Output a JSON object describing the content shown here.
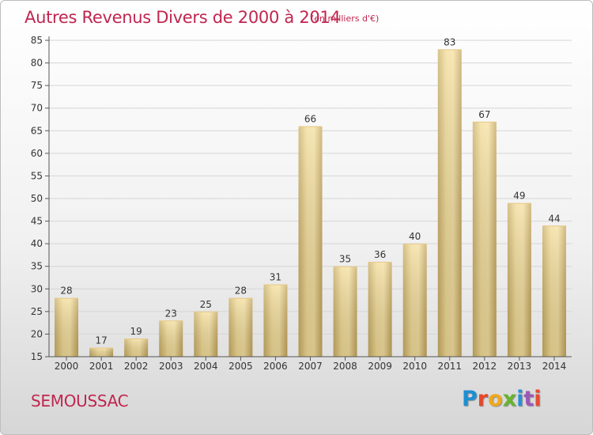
{
  "header": {
    "title": "Autres Revenus Divers de 2000 à 2014",
    "subtitle": "(en milliers d'€)"
  },
  "footer": {
    "city": "SEMOUSSAC",
    "logo": "Proxiti"
  },
  "logo_colors": [
    "#1d8fd1",
    "#e8462a",
    "#f0a81c",
    "#67b32e",
    "#2a8fd6",
    "#9c58b6",
    "#e84a33"
  ],
  "colors": {
    "bar_light": "#f6e4a4",
    "bar_dark": "#c4a55a",
    "axis": "#555555",
    "grid": "#d0d0d0",
    "accent": "#c0264f"
  },
  "chart_data": {
    "type": "bar",
    "title": "Autres Revenus Divers de 2000 à 2014",
    "subtitle": "(en milliers d'€)",
    "categories": [
      "2000",
      "2001",
      "2002",
      "2003",
      "2004",
      "2005",
      "2006",
      "2007",
      "2008",
      "2009",
      "2010",
      "2011",
      "2012",
      "2013",
      "2014"
    ],
    "values": [
      28,
      17,
      19,
      23,
      25,
      28,
      31,
      66,
      35,
      36,
      40,
      83,
      67,
      49,
      44
    ],
    "ylim": [
      15,
      85
    ],
    "yticks": [
      15,
      20,
      25,
      30,
      35,
      40,
      45,
      50,
      55,
      60,
      65,
      70,
      75,
      80,
      85
    ],
    "xlabel": "",
    "ylabel": "",
    "grid": true,
    "data_labels": true
  }
}
